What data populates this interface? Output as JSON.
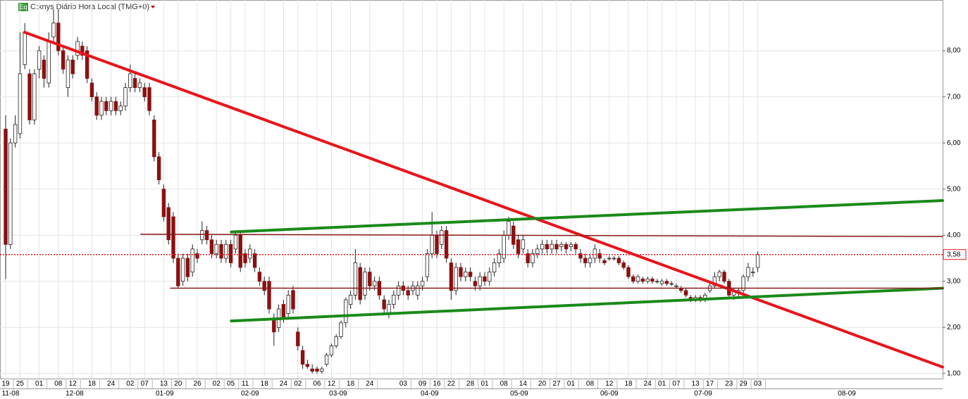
{
  "chart_data": {
    "type": "candlestick",
    "badge": "Eq",
    "title": "C:xnys Diário Hora Local (TMG+0)",
    "xlim": [
      -1.18,
      195.59
    ],
    "ylim": [
      0.89,
      9.1
    ],
    "yticks": [
      {
        "value": 1,
        "label": "1,00"
      },
      {
        "value": 2,
        "label": "2,00"
      },
      {
        "value": 3,
        "label": "3,00"
      },
      {
        "value": 4,
        "label": "4,00"
      },
      {
        "value": 5,
        "label": "5,00"
      },
      {
        "value": 6,
        "label": "6,00"
      },
      {
        "value": 7,
        "label": "7,00"
      },
      {
        "value": 8,
        "label": "8,00"
      }
    ],
    "xticks": [
      {
        "value": 0,
        "label": "19"
      },
      {
        "value": 3,
        "label": "25"
      },
      {
        "value": 7,
        "label": "01"
      },
      {
        "value": 11,
        "label": "08"
      },
      {
        "value": 14,
        "label": "12"
      },
      {
        "value": 18,
        "label": "18"
      },
      {
        "value": 22,
        "label": "24"
      },
      {
        "value": 26,
        "label": "02"
      },
      {
        "value": 29,
        "label": "07"
      },
      {
        "value": 33,
        "label": "13"
      },
      {
        "value": 36,
        "label": "20"
      },
      {
        "value": 40,
        "label": "26"
      },
      {
        "value": 44,
        "label": "02"
      },
      {
        "value": 47,
        "label": "05"
      },
      {
        "value": 50,
        "label": "11"
      },
      {
        "value": 54,
        "label": "18"
      },
      {
        "value": 58,
        "label": "24"
      },
      {
        "value": 61,
        "label": "02"
      },
      {
        "value": 65,
        "label": "06"
      },
      {
        "value": 68,
        "label": "12"
      },
      {
        "value": 72,
        "label": "18"
      },
      {
        "value": 76,
        "label": "24"
      },
      {
        "value": 83,
        "label": "03"
      },
      {
        "value": 87,
        "label": "09"
      },
      {
        "value": 90,
        "label": "16"
      },
      {
        "value": 93,
        "label": "22"
      },
      {
        "value": 97,
        "label": "28"
      },
      {
        "value": 100,
        "label": "01"
      },
      {
        "value": 104,
        "label": "08"
      },
      {
        "value": 108,
        "label": "14"
      },
      {
        "value": 112,
        "label": "20"
      },
      {
        "value": 115,
        "label": "27"
      },
      {
        "value": 118,
        "label": "01"
      },
      {
        "value": 122,
        "label": "08"
      },
      {
        "value": 126,
        "label": "12"
      },
      {
        "value": 130,
        "label": "18"
      },
      {
        "value": 134,
        "label": "24"
      },
      {
        "value": 137,
        "label": "01"
      },
      {
        "value": 140,
        "label": "07"
      },
      {
        "value": 144,
        "label": "13"
      },
      {
        "value": 147,
        "label": "17"
      },
      {
        "value": 151,
        "label": "23"
      },
      {
        "value": 154,
        "label": "29"
      },
      {
        "value": 157,
        "label": "03"
      }
    ],
    "month_ticks": [
      {
        "value": -0.8,
        "label": "11-08"
      },
      {
        "value": 14.4,
        "label": "12-08"
      },
      {
        "value": 33.2,
        "label": "01-09"
      },
      {
        "value": 51,
        "label": "02-09"
      },
      {
        "value": 69.4,
        "label": "03-09"
      },
      {
        "value": 88.5,
        "label": "04-09"
      },
      {
        "value": 107.2,
        "label": "05-09"
      },
      {
        "value": 126,
        "label": "06-09"
      },
      {
        "value": 145.6,
        "label": "07-09"
      },
      {
        "value": 175.6,
        "label": "08-09"
      }
    ],
    "grid": true,
    "up_color": "#ffffff",
    "down_color": "#8b1010",
    "ohlc": [
      [
        6.3,
        6.6,
        3.05,
        3.8
      ],
      [
        3.8,
        6.1,
        3.7,
        6.0
      ],
      [
        6.0,
        6.6,
        5.9,
        6.4
      ],
      [
        6.2,
        8.4,
        6.1,
        7.5
      ],
      [
        7.7,
        8.6,
        7.6,
        8.4
      ],
      [
        7.5,
        7.6,
        6.4,
        6.5
      ],
      [
        6.5,
        7.6,
        6.4,
        7.5
      ],
      [
        7.6,
        8.1,
        7.4,
        8.0
      ],
      [
        7.8,
        7.9,
        7.2,
        7.4
      ],
      [
        7.3,
        8.4,
        7.2,
        8.2
      ],
      [
        8.3,
        8.9,
        8.2,
        8.6
      ],
      [
        8.6,
        8.9,
        7.9,
        8.0
      ],
      [
        8.0,
        8.1,
        7.5,
        7.6
      ],
      [
        7.2,
        7.9,
        7.0,
        7.8
      ],
      [
        7.8,
        7.9,
        7.4,
        7.5
      ],
      [
        7.9,
        8.3,
        7.8,
        8.2
      ],
      [
        8.1,
        8.2,
        7.8,
        7.9
      ],
      [
        8.0,
        8.1,
        7.3,
        7.4
      ],
      [
        7.3,
        7.4,
        6.9,
        7.0
      ],
      [
        7.0,
        7.1,
        6.5,
        6.6
      ],
      [
        6.6,
        7.0,
        6.5,
        6.9
      ],
      [
        6.9,
        7.0,
        6.6,
        6.7
      ],
      [
        6.7,
        7.0,
        6.6,
        6.9
      ],
      [
        6.9,
        7.0,
        6.6,
        6.7
      ],
      [
        6.7,
        6.9,
        6.6,
        6.8
      ],
      [
        6.8,
        7.3,
        6.7,
        7.2
      ],
      [
        7.2,
        7.7,
        7.1,
        7.5
      ],
      [
        7.4,
        7.5,
        7.1,
        7.2
      ],
      [
        7.2,
        7.4,
        7.1,
        7.3
      ],
      [
        7.2,
        7.3,
        6.9,
        7.0
      ],
      [
        7.2,
        7.3,
        6.6,
        6.7
      ],
      [
        6.5,
        6.6,
        5.6,
        5.7
      ],
      [
        5.7,
        5.8,
        5.1,
        5.2
      ],
      [
        5.0,
        5.1,
        4.3,
        4.4
      ],
      [
        4.6,
        4.7,
        3.8,
        3.9
      ],
      [
        4.4,
        4.5,
        3.4,
        3.5
      ],
      [
        3.5,
        3.6,
        2.85,
        2.9
      ],
      [
        3.0,
        3.6,
        2.9,
        3.5
      ],
      [
        3.5,
        3.6,
        3.0,
        3.1
      ],
      [
        3.2,
        3.8,
        3.1,
        3.7
      ],
      [
        3.6,
        3.7,
        3.4,
        3.5
      ],
      [
        3.9,
        4.3,
        3.8,
        4.1
      ],
      [
        4.1,
        4.2,
        3.8,
        3.9
      ],
      [
        3.9,
        4.0,
        3.5,
        3.6
      ],
      [
        3.6,
        3.9,
        3.5,
        3.8
      ],
      [
        3.8,
        3.9,
        3.4,
        3.5
      ],
      [
        3.5,
        3.9,
        3.4,
        3.8
      ],
      [
        3.8,
        3.9,
        3.3,
        3.4
      ],
      [
        3.7,
        4.1,
        3.6,
        4.0
      ],
      [
        4.0,
        4.1,
        3.2,
        3.3
      ],
      [
        3.6,
        3.7,
        3.3,
        3.4
      ],
      [
        3.5,
        3.8,
        3.4,
        3.7
      ],
      [
        3.6,
        3.7,
        3.2,
        3.3
      ],
      [
        3.2,
        3.3,
        2.9,
        3.0
      ],
      [
        3.0,
        3.1,
        2.7,
        2.8
      ],
      [
        3.0,
        3.1,
        2.3,
        2.4
      ],
      [
        2.2,
        2.3,
        1.6,
        1.9
      ],
      [
        2.0,
        2.5,
        1.9,
        2.4
      ],
      [
        2.5,
        2.6,
        2.1,
        2.2
      ],
      [
        2.3,
        2.8,
        2.2,
        2.7
      ],
      [
        2.8,
        2.9,
        2.3,
        2.4
      ],
      [
        1.9,
        2.0,
        1.5,
        1.6
      ],
      [
        1.5,
        1.6,
        1.1,
        1.2
      ],
      [
        1.2,
        1.3,
        1.1,
        1.15
      ],
      [
        1.1,
        1.2,
        1.0,
        1.05
      ],
      [
        1.1,
        1.15,
        1.0,
        1.05
      ],
      [
        1.05,
        1.15,
        1.0,
        1.1
      ],
      [
        1.2,
        1.45,
        1.15,
        1.4
      ],
      [
        1.4,
        1.65,
        1.35,
        1.6
      ],
      [
        1.6,
        1.85,
        1.55,
        1.8
      ],
      [
        1.8,
        2.15,
        1.75,
        2.1
      ],
      [
        2.1,
        2.65,
        2.0,
        2.6
      ],
      [
        2.5,
        2.8,
        2.4,
        2.7
      ],
      [
        2.7,
        3.7,
        2.6,
        3.4
      ],
      [
        3.3,
        3.4,
        2.5,
        2.6
      ],
      [
        2.7,
        3.3,
        2.6,
        3.2
      ],
      [
        3.2,
        3.3,
        2.8,
        2.9
      ],
      [
        2.9,
        3.1,
        2.8,
        3.0
      ],
      [
        3.0,
        3.1,
        2.6,
        2.7
      ],
      [
        2.6,
        2.7,
        2.3,
        2.4
      ],
      [
        2.3,
        2.6,
        2.2,
        2.5
      ],
      [
        2.5,
        2.8,
        2.4,
        2.7
      ],
      [
        2.7,
        3.0,
        2.6,
        2.9
      ],
      [
        2.9,
        3.0,
        2.7,
        2.8
      ],
      [
        2.8,
        2.9,
        2.6,
        2.7
      ],
      [
        2.8,
        3.0,
        2.7,
        2.9
      ],
      [
        2.7,
        3.0,
        2.6,
        2.9
      ],
      [
        2.9,
        3.1,
        2.8,
        3.0
      ],
      [
        3.1,
        3.7,
        3.0,
        3.6
      ],
      [
        3.6,
        4.5,
        3.5,
        4.0
      ],
      [
        4.0,
        4.1,
        3.5,
        3.6
      ],
      [
        3.8,
        4.2,
        3.7,
        4.1
      ],
      [
        4.1,
        4.2,
        3.4,
        3.5
      ],
      [
        3.4,
        3.5,
        2.6,
        2.8
      ],
      [
        2.8,
        3.4,
        2.7,
        3.3
      ],
      [
        3.3,
        3.4,
        3.0,
        3.1
      ],
      [
        3.1,
        3.3,
        3.0,
        3.2
      ],
      [
        3.2,
        3.3,
        3.0,
        3.1
      ],
      [
        3.0,
        3.1,
        2.8,
        2.9
      ],
      [
        2.9,
        3.2,
        2.8,
        3.1
      ],
      [
        3.1,
        3.2,
        2.9,
        3.0
      ],
      [
        3.0,
        3.3,
        2.9,
        3.2
      ],
      [
        3.2,
        3.5,
        3.1,
        3.4
      ],
      [
        3.4,
        3.7,
        3.3,
        3.6
      ],
      [
        3.5,
        4.1,
        3.4,
        4.0
      ],
      [
        4.0,
        4.4,
        3.9,
        4.3
      ],
      [
        4.2,
        4.3,
        3.7,
        3.8
      ],
      [
        3.9,
        4.0,
        3.5,
        3.6
      ],
      [
        3.7,
        4.0,
        3.6,
        3.9
      ],
      [
        3.6,
        3.7,
        3.3,
        3.4
      ],
      [
        3.4,
        3.7,
        3.3,
        3.6
      ],
      [
        3.6,
        3.8,
        3.5,
        3.7
      ],
      [
        3.7,
        3.9,
        3.6,
        3.8
      ],
      [
        3.8,
        3.9,
        3.6,
        3.7
      ],
      [
        3.7,
        3.9,
        3.6,
        3.8
      ],
      [
        3.8,
        3.9,
        3.6,
        3.7
      ],
      [
        3.75,
        3.85,
        3.65,
        3.8
      ],
      [
        3.8,
        3.85,
        3.6,
        3.7
      ],
      [
        3.75,
        3.85,
        3.65,
        3.8
      ],
      [
        3.8,
        3.85,
        3.6,
        3.7
      ],
      [
        3.6,
        3.7,
        3.4,
        3.5
      ],
      [
        3.5,
        3.6,
        3.3,
        3.4
      ],
      [
        3.4,
        3.6,
        3.3,
        3.5
      ],
      [
        3.5,
        3.8,
        3.4,
        3.7
      ],
      [
        3.6,
        3.7,
        3.4,
        3.5
      ],
      [
        3.45,
        3.5,
        3.35,
        3.4
      ],
      [
        3.5,
        3.55,
        3.45,
        3.5
      ],
      [
        3.5,
        3.55,
        3.45,
        3.5
      ],
      [
        3.5,
        3.55,
        3.35,
        3.4
      ],
      [
        3.4,
        3.45,
        3.25,
        3.3
      ],
      [
        3.3,
        3.35,
        3.05,
        3.1
      ],
      [
        3.1,
        3.15,
        2.95,
        3.0
      ],
      [
        3.0,
        3.15,
        2.95,
        3.1
      ],
      [
        3.05,
        3.1,
        2.95,
        3.0
      ],
      [
        3.0,
        3.1,
        2.95,
        3.05
      ],
      [
        3.05,
        3.1,
        2.95,
        3.0
      ],
      [
        3.0,
        3.05,
        2.95,
        3.0
      ],
      [
        2.95,
        3.05,
        2.9,
        3.0
      ],
      [
        3.0,
        3.05,
        2.9,
        2.95
      ],
      [
        2.95,
        3.0,
        2.9,
        2.95
      ],
      [
        2.9,
        2.95,
        2.85,
        2.9
      ],
      [
        2.85,
        2.9,
        2.75,
        2.8
      ],
      [
        2.8,
        2.85,
        2.65,
        2.7
      ],
      [
        2.65,
        2.7,
        2.55,
        2.6
      ],
      [
        2.6,
        2.7,
        2.55,
        2.65
      ],
      [
        2.65,
        2.7,
        2.55,
        2.6
      ],
      [
        2.6,
        2.75,
        2.55,
        2.7
      ],
      [
        2.8,
        2.95,
        2.75,
        2.9
      ],
      [
        2.9,
        3.2,
        2.85,
        3.1
      ],
      [
        3.1,
        3.25,
        3.0,
        3.2
      ],
      [
        3.2,
        3.25,
        2.95,
        3.0
      ],
      [
        3.0,
        3.05,
        2.65,
        2.7
      ],
      [
        2.7,
        2.85,
        2.6,
        2.8
      ],
      [
        2.75,
        2.85,
        2.65,
        2.8
      ],
      [
        2.8,
        3.15,
        2.7,
        3.1
      ],
      [
        3.1,
        3.4,
        3.0,
        3.3
      ],
      [
        3.2,
        3.3,
        3.1,
        3.2
      ],
      [
        3.3,
        3.65,
        3.2,
        3.58
      ]
    ],
    "trendlines": [
      {
        "color": "#e8141c",
        "start": [
          3.97,
          8.4
        ],
        "end": [
          195.59,
          1.14
        ]
      },
      {
        "color": "#1a8a1a",
        "start": [
          47.1,
          4.07
        ],
        "end": [
          195.59,
          4.75
        ]
      },
      {
        "color": "#1a8a1a",
        "start": [
          47.1,
          2.14
        ],
        "end": [
          195.59,
          2.85
        ]
      },
      {
        "color": "#8b1a1a",
        "start": [
          28.2,
          4.02
        ],
        "end": [
          195.59,
          3.97
        ]
      },
      {
        "color": "#8b1a1a",
        "start": [
          34.4,
          2.85
        ],
        "end": [
          195.59,
          2.85
        ]
      }
    ],
    "last_price": {
      "value": 3.58,
      "label": "3,58",
      "color": "#e8141c"
    }
  }
}
